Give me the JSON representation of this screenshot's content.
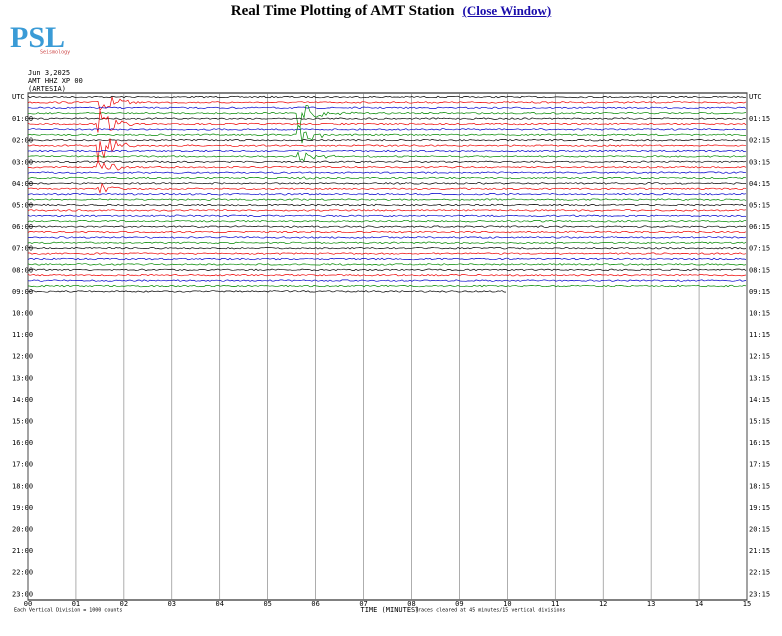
{
  "header": {
    "title": "Real Time Plotting of AMT Station",
    "link": "(Close Window)"
  },
  "logo": {
    "text": "PSL",
    "subtext": "Seismology"
  },
  "station": {
    "date": "Jun 3,2025",
    "channel": "AMT HHZ XP 00",
    "place": "(ARTESIA)"
  },
  "rows": {
    "left": [
      "UTC",
      "01:00",
      "02:00",
      "03:00",
      "04:00",
      "05:00",
      "06:00",
      "07:00",
      "08:00",
      "09:00",
      "10:00",
      "11:00",
      "12:00",
      "13:00",
      "14:00",
      "15:00",
      "16:00",
      "17:00",
      "18:00",
      "19:00",
      "20:00",
      "21:00",
      "22:00",
      "23:00"
    ],
    "right": [
      "UTC",
      "01:15",
      "02:15",
      "03:15",
      "04:15",
      "05:15",
      "06:15",
      "07:15",
      "08:15",
      "09:15",
      "10:15",
      "11:15",
      "12:15",
      "13:15",
      "14:15",
      "15:15",
      "16:15",
      "17:15",
      "18:15",
      "19:15",
      "20:15",
      "21:15",
      "22:15",
      "23:15"
    ]
  },
  "x_axis": {
    "ticks": [
      "00",
      "01",
      "02",
      "03",
      "04",
      "05",
      "06",
      "07",
      "08",
      "09",
      "10",
      "11",
      "12",
      "13",
      "14",
      "15"
    ],
    "label": "TIME (MINUTES)",
    "note": "Traces cleared at 45 minutes/15 vertical divisions"
  },
  "footnote": "Each Vertical Division = 1000 counts"
}
